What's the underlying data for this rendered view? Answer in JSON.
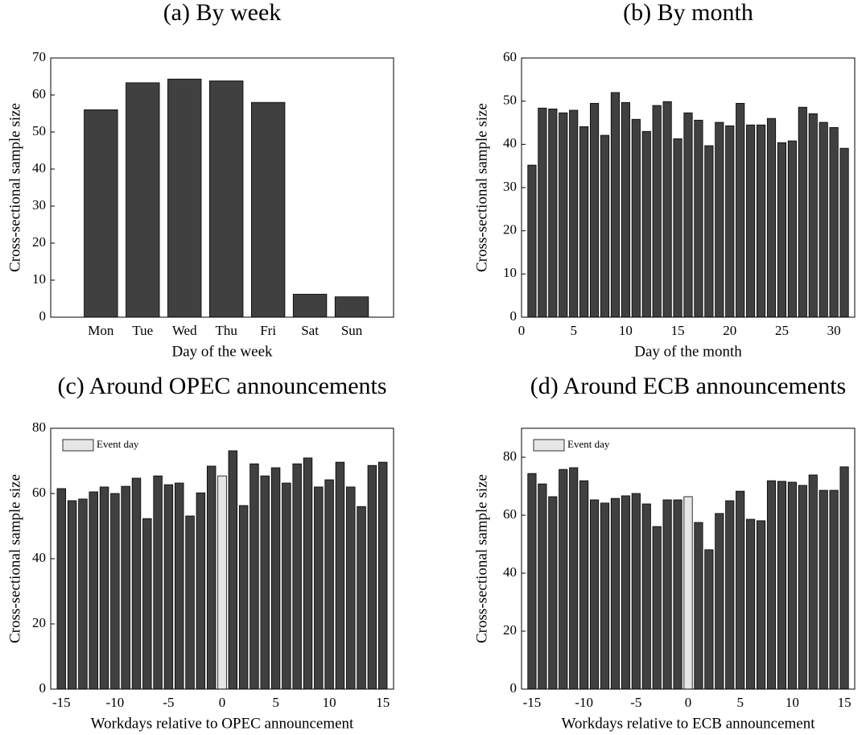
{
  "chart_data": [
    {
      "type": "bar",
      "title": "(a) By week",
      "xlabel": "Day of the week",
      "ylabel": "Cross-sectional sample size",
      "categories": [
        "Mon",
        "Tue",
        "Wed",
        "Thu",
        "Fri",
        "Sat",
        "Sun"
      ],
      "values": [
        56,
        63.3,
        64.3,
        63.8,
        58,
        6.2,
        5.5
      ],
      "color": "#404040",
      "ylim": [
        0,
        70
      ],
      "yticks": [
        0,
        10,
        20,
        30,
        40,
        50,
        60,
        70
      ]
    },
    {
      "type": "bar",
      "title": "(b) By month",
      "xlabel": "Day of the month",
      "ylabel": "Cross-sectional sample size",
      "x": [
        1,
        2,
        3,
        4,
        5,
        6,
        7,
        8,
        9,
        10,
        11,
        12,
        13,
        14,
        15,
        16,
        17,
        18,
        19,
        20,
        21,
        22,
        23,
        24,
        25,
        26,
        27,
        28,
        29,
        30,
        31
      ],
      "values": [
        35.2,
        48.4,
        48.2,
        47.3,
        47.9,
        44.1,
        49.5,
        42.1,
        52,
        49.7,
        45.8,
        43,
        49,
        49.9,
        41.3,
        47.3,
        45.6,
        39.7,
        45.1,
        44.3,
        49.5,
        44.5,
        44.5,
        46,
        40.4,
        40.8,
        48.6,
        47.1,
        45.1,
        43.9,
        39.1
      ],
      "color": "#404040",
      "xlim": [
        0,
        32
      ],
      "xticks": [
        0,
        5,
        10,
        15,
        20,
        25,
        30
      ],
      "ylim": [
        0,
        60
      ],
      "yticks": [
        0,
        10,
        20,
        30,
        40,
        50,
        60
      ]
    },
    {
      "type": "bar",
      "title": "(c) Around OPEC announcements",
      "xlabel": "Workdays relative to OPEC announcement",
      "ylabel": "Cross-sectional sample size",
      "x": [
        -15,
        -14,
        -13,
        -12,
        -11,
        -10,
        -9,
        -8,
        -7,
        -6,
        -5,
        -4,
        -3,
        -2,
        -1,
        0,
        1,
        2,
        3,
        4,
        5,
        6,
        7,
        8,
        9,
        10,
        11,
        12,
        13,
        14,
        15
      ],
      "values": [
        61.5,
        57.8,
        58.3,
        60.5,
        62,
        60,
        62.2,
        64.7,
        52.3,
        65.4,
        62.7,
        63.2,
        53.1,
        60.2,
        68.4,
        65.4,
        73.1,
        56.3,
        69.1,
        65.4,
        67.9,
        63.2,
        69.1,
        70.9,
        62,
        64.2,
        69.6,
        62,
        56,
        68.6,
        69.6
      ],
      "color": "#404040",
      "highlight": {
        "name": "Event day",
        "x": 0,
        "color": "#e6e6e6"
      },
      "legend": "upper left",
      "xlim": [
        -16,
        16
      ],
      "xticks": [
        -15,
        -10,
        -5,
        0,
        5,
        10,
        15
      ],
      "ylim": [
        0,
        80
      ],
      "yticks": [
        0,
        20,
        40,
        60,
        80
      ]
    },
    {
      "type": "bar",
      "title": "(d) Around ECB announcements",
      "xlabel": "Workdays relative to ECB announcement",
      "ylabel": "Cross-sectional sample size",
      "x": [
        -15,
        -14,
        -13,
        -12,
        -11,
        -10,
        -9,
        -8,
        -7,
        -6,
        -5,
        -4,
        -3,
        -2,
        -1,
        0,
        1,
        2,
        3,
        4,
        5,
        6,
        7,
        8,
        9,
        10,
        11,
        12,
        13,
        14,
        15
      ],
      "values": [
        74.4,
        70.8,
        66.4,
        75.8,
        76.4,
        71.9,
        65.3,
        64.2,
        65.8,
        66.7,
        67.5,
        63.9,
        56.1,
        65.3,
        65.3,
        66.4,
        57.5,
        48.1,
        60.6,
        65,
        68.3,
        58.6,
        58.1,
        71.9,
        71.7,
        71.4,
        70.3,
        73.9,
        68.6,
        68.6,
        76.7
      ],
      "color": "#404040",
      "highlight": {
        "name": "Event day",
        "x": 0,
        "color": "#e6e6e6"
      },
      "legend": "upper left",
      "xlim": [
        -16,
        16
      ],
      "xticks": [
        -15,
        -10,
        -5,
        0,
        5,
        10,
        15
      ],
      "ylim": [
        0,
        90
      ],
      "yticks": [
        0,
        20,
        40,
        60,
        80
      ]
    }
  ]
}
